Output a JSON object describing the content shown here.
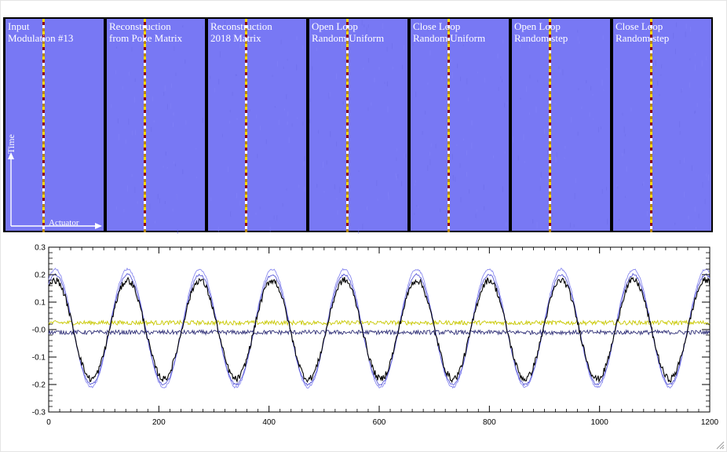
{
  "top_panels": {
    "panels": [
      {
        "line1": "Input",
        "line2": "Modulation #13"
      },
      {
        "line1": "Reconstruction",
        "line2": "from Poke Matrix"
      },
      {
        "line1": "Reconstruction",
        "line2": "2018 Matrix"
      },
      {
        "line1": "Open Loop",
        "line2": "Random Uniform"
      },
      {
        "line1": "Close Loop",
        "line2": "Random Uniform"
      },
      {
        "line1": "Open Loop",
        "line2": "Random step"
      },
      {
        "line1": "Close Loop",
        "line2": "Random step"
      }
    ],
    "axis_labels": {
      "time": "Time",
      "actuator": "Actuator"
    },
    "colors": {
      "panel_bg": "#7878f4",
      "divider": "#000000",
      "arrow": "#ffffff"
    },
    "stripe_colors": [
      "#ffd800",
      "#8b0a0a",
      "#ffffff",
      "#b8860b"
    ]
  },
  "chart_data": {
    "type": "line",
    "xlim": [
      0,
      1200
    ],
    "ylim": [
      -0.3,
      0.3
    ],
    "xticks": [
      0,
      200,
      400,
      600,
      800,
      1000,
      1200
    ],
    "yticks": [
      -0.3,
      -0.2,
      -0.1,
      0.0,
      0.1,
      0.2,
      0.3
    ],
    "ytick_labels": [
      "-0.3",
      "-0.2",
      "-0.1",
      "-0.0",
      "0.1",
      "0.2",
      "0.3"
    ],
    "xlabel": "",
    "ylabel": "",
    "grid": false,
    "sine_period": 131.2,
    "sine_phase_peak_x": 12,
    "series": [
      {
        "color": "#000000",
        "amplitude": 0.18,
        "offset": 0.0,
        "noise": 0.012
      },
      {
        "color": "#5a5ad6",
        "amplitude": 0.2,
        "offset": 0.0,
        "noise": 0.004
      },
      {
        "color": "#8a8af0",
        "amplitude": 0.215,
        "offset": 0.005,
        "noise": 0.004
      },
      {
        "color": "#c8c800",
        "amplitude": 0.0,
        "offset": 0.025,
        "noise": 0.008
      },
      {
        "color": "#303078",
        "amplitude": 0.0,
        "offset": -0.01,
        "noise": 0.008
      }
    ]
  }
}
